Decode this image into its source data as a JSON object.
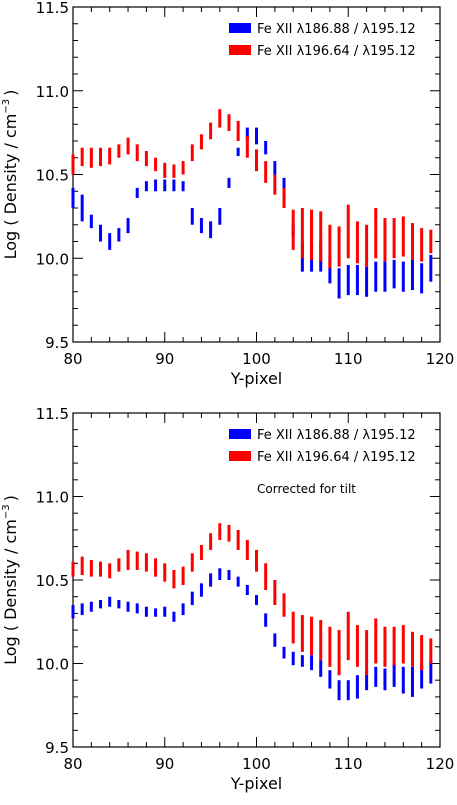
{
  "chart_data": [
    {
      "type": "errorbar",
      "title": "",
      "xlabel": "Y-pixel",
      "ylabel": "Log ( Density / cm",
      "ylabel_exponent": "−3",
      "ylabel_close": ")",
      "xlim": [
        80,
        120
      ],
      "ylim": [
        9.5,
        11.5
      ],
      "xticks": [
        "80",
        "90",
        "100",
        "110",
        "120"
      ],
      "yticks": [
        "9.5",
        "10.0",
        "10.5",
        "11.0",
        "11.5"
      ],
      "grid": false,
      "legend_position": "top-right",
      "annotation": "",
      "series": [
        {
          "name": "Fe XII λ186.88 / λ195.12",
          "color": "#0000ff",
          "x": [
            80,
            81,
            82,
            83,
            84,
            85,
            86,
            87,
            88,
            89,
            90,
            91,
            92,
            93,
            94,
            95,
            96,
            97,
            98,
            99,
            100,
            101,
            102,
            103,
            104,
            105,
            106,
            107,
            108,
            109,
            110,
            111,
            112,
            113,
            114,
            115,
            116,
            117,
            118,
            119
          ],
          "low": [
            10.3,
            10.22,
            10.18,
            10.1,
            10.05,
            10.1,
            10.15,
            10.36,
            10.4,
            10.4,
            10.4,
            10.4,
            10.4,
            10.2,
            10.15,
            10.12,
            10.2,
            10.42,
            10.61,
            10.7,
            10.68,
            10.62,
            10.5,
            10.34,
            10.13,
            9.92,
            9.92,
            9.92,
            9.85,
            9.76,
            9.78,
            9.78,
            9.77,
            9.8,
            9.8,
            9.82,
            9.8,
            9.81,
            9.79,
            9.86
          ],
          "high": [
            10.42,
            10.38,
            10.26,
            10.2,
            10.15,
            10.18,
            10.24,
            10.42,
            10.46,
            10.47,
            10.47,
            10.47,
            10.46,
            10.3,
            10.24,
            10.22,
            10.3,
            10.48,
            10.66,
            10.78,
            10.78,
            10.7,
            10.58,
            10.48,
            10.2,
            10.1,
            10.1,
            10.1,
            10.02,
            9.94,
            9.96,
            9.96,
            9.95,
            9.98,
            9.98,
            9.99,
            9.98,
            9.99,
            9.97,
            10.02
          ]
        },
        {
          "name": "Fe XII λ196.64 / λ195.12",
          "color": "#ff0000",
          "x": [
            80,
            81,
            82,
            83,
            84,
            85,
            86,
            87,
            88,
            89,
            90,
            91,
            92,
            93,
            94,
            95,
            96,
            97,
            98,
            99,
            100,
            101,
            102,
            103,
            104,
            105,
            106,
            107,
            108,
            109,
            110,
            111,
            112,
            113,
            114,
            115,
            116,
            117,
            118,
            119
          ],
          "low": [
            10.5,
            10.55,
            10.54,
            10.55,
            10.56,
            10.6,
            10.62,
            10.58,
            10.55,
            10.52,
            10.48,
            10.48,
            10.5,
            10.58,
            10.65,
            10.71,
            10.78,
            10.76,
            10.7,
            10.6,
            10.52,
            10.45,
            10.38,
            10.3,
            10.05,
            10.0,
            9.99,
            9.98,
            9.94,
            9.95,
            10.0,
            9.97,
            9.95,
            10.0,
            9.98,
            10.0,
            10.01,
            9.99,
            9.98,
            10.03
          ],
          "high": [
            10.62,
            10.66,
            10.66,
            10.66,
            10.66,
            10.68,
            10.72,
            10.68,
            10.64,
            10.6,
            10.57,
            10.56,
            10.58,
            10.68,
            10.74,
            10.81,
            10.89,
            10.86,
            10.82,
            10.73,
            10.65,
            10.58,
            10.5,
            10.42,
            10.29,
            10.3,
            10.29,
            10.28,
            10.2,
            10.19,
            10.32,
            10.22,
            10.2,
            10.3,
            10.24,
            10.24,
            10.25,
            10.21,
            10.18,
            10.17
          ]
        }
      ]
    },
    {
      "type": "errorbar",
      "title": "",
      "xlabel": "Y-pixel",
      "ylabel": "Log ( Density / cm",
      "ylabel_exponent": "−3",
      "ylabel_close": ")",
      "xlim": [
        80,
        120
      ],
      "ylim": [
        9.5,
        11.5
      ],
      "xticks": [
        "80",
        "90",
        "100",
        "110",
        "120"
      ],
      "yticks": [
        "9.5",
        "10.0",
        "10.5",
        "11.0",
        "11.5"
      ],
      "grid": false,
      "legend_position": "top-right",
      "annotation": "Corrected for tilt",
      "series": [
        {
          "name": "Fe XII λ186.88 / λ195.12",
          "color": "#0000ff",
          "x": [
            80,
            81,
            82,
            83,
            84,
            85,
            86,
            87,
            88,
            89,
            90,
            91,
            92,
            93,
            94,
            95,
            96,
            97,
            98,
            99,
            100,
            101,
            102,
            103,
            104,
            105,
            106,
            107,
            108,
            109,
            110,
            111,
            112,
            113,
            114,
            115,
            116,
            117,
            118,
            119
          ],
          "low": [
            10.27,
            10.29,
            10.31,
            10.33,
            10.34,
            10.33,
            10.31,
            10.3,
            10.28,
            10.28,
            10.28,
            10.25,
            10.29,
            10.35,
            10.4,
            10.46,
            10.5,
            10.5,
            10.46,
            10.41,
            10.35,
            10.22,
            10.1,
            10.03,
            9.99,
            9.98,
            9.96,
            9.92,
            9.85,
            9.78,
            9.78,
            9.79,
            9.84,
            9.86,
            9.84,
            9.86,
            9.82,
            9.8,
            9.85,
            9.88
          ],
          "high": [
            10.35,
            10.36,
            10.37,
            10.38,
            10.4,
            10.38,
            10.37,
            10.36,
            10.34,
            10.33,
            10.34,
            10.31,
            10.36,
            10.43,
            10.48,
            10.54,
            10.57,
            10.56,
            10.52,
            10.47,
            10.41,
            10.3,
            10.18,
            10.1,
            10.07,
            10.05,
            10.05,
            10.02,
            9.96,
            9.9,
            9.9,
            9.93,
            9.96,
            9.98,
            9.97,
            10.0,
            9.98,
            9.98,
            9.99,
            10.02
          ]
        },
        {
          "name": "Fe XII λ196.64 / λ195.12",
          "color": "#ff0000",
          "x": [
            80,
            81,
            82,
            83,
            84,
            85,
            86,
            87,
            88,
            89,
            90,
            91,
            92,
            93,
            94,
            95,
            96,
            97,
            98,
            99,
            100,
            101,
            102,
            103,
            104,
            105,
            106,
            107,
            108,
            109,
            110,
            111,
            112,
            113,
            114,
            115,
            116,
            117,
            118,
            119
          ],
          "low": [
            10.52,
            10.53,
            10.52,
            10.52,
            10.51,
            10.55,
            10.56,
            10.56,
            10.55,
            10.52,
            10.49,
            10.45,
            10.47,
            10.55,
            10.62,
            10.68,
            10.74,
            10.73,
            10.68,
            10.62,
            10.55,
            10.44,
            10.35,
            10.28,
            10.12,
            10.07,
            10.05,
            10.02,
            9.98,
            9.93,
            10.02,
            9.98,
            9.93,
            10.0,
            9.98,
            9.99,
            10.0,
            9.98,
            9.96,
            10.0
          ],
          "high": [
            10.61,
            10.64,
            10.62,
            10.61,
            10.6,
            10.63,
            10.68,
            10.67,
            10.66,
            10.63,
            10.6,
            10.56,
            10.58,
            10.66,
            10.71,
            10.78,
            10.84,
            10.83,
            10.8,
            10.74,
            10.68,
            10.6,
            10.5,
            10.42,
            10.31,
            10.29,
            10.28,
            10.26,
            10.22,
            10.2,
            10.31,
            10.23,
            10.2,
            10.27,
            10.22,
            10.22,
            10.23,
            10.19,
            10.17,
            10.15
          ]
        }
      ]
    }
  ]
}
